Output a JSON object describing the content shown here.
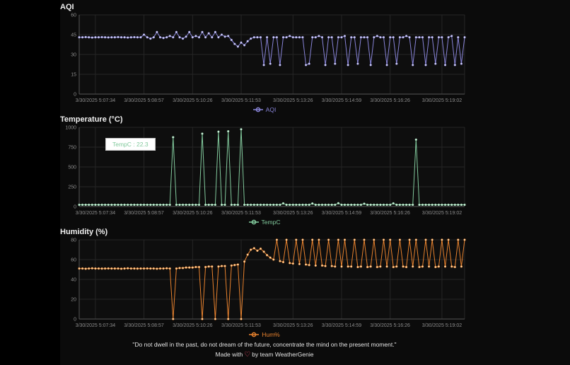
{
  "chart_data": [
    {
      "type": "line",
      "title": "AQI",
      "legend": "AQI",
      "color": "#8884d8",
      "dot_fill": "#d8d8f6",
      "y_max": 60,
      "y_ticks": [
        0,
        15,
        30,
        45,
        60
      ],
      "x_tick_indices": [
        5,
        20,
        35,
        50,
        66,
        81,
        96,
        112
      ],
      "x_tick_labels": [
        "3/30/2025 5:07:34",
        "3/30/2025 5:08:57",
        "3/30/2025 5:10:26",
        "3/30/2025 5:11:53",
        "3/30/2025 5:13:26",
        "3/30/2025 5:14:59",
        "3/30/2025 5:16:26",
        "3/30/2025 5:19:02"
      ],
      "values": [
        43,
        43,
        43.2,
        43,
        42.8,
        43,
        43,
        43.1,
        43,
        42.9,
        43,
        43,
        43.2,
        43,
        43,
        42.8,
        43,
        43.1,
        43,
        43,
        45,
        43,
        42,
        43,
        47,
        43,
        42.5,
        43,
        44,
        43,
        47,
        43,
        42,
        43.5,
        47,
        43,
        44,
        43,
        47,
        43,
        46,
        43,
        47,
        43,
        45,
        43.5,
        44,
        41,
        38,
        36,
        39,
        37,
        40,
        42,
        43,
        43,
        43,
        22,
        43,
        23,
        43,
        43,
        22,
        43,
        43,
        44,
        43,
        43,
        43,
        43,
        22,
        23,
        43,
        43,
        44,
        43,
        22,
        43,
        43,
        23,
        43,
        43,
        44,
        22,
        43,
        43,
        23,
        43,
        43,
        43,
        22,
        43,
        44,
        43,
        43,
        22,
        43,
        43,
        23,
        43,
        43,
        44,
        43,
        22,
        43,
        43,
        43,
        22,
        43,
        43,
        23,
        43,
        43,
        22,
        43,
        44,
        22,
        43,
        23,
        43
      ]
    },
    {
      "type": "line",
      "title": "Temperature (°C)",
      "legend": "TempC",
      "color": "#82ca9d",
      "dot_fill": "#d7f0e0",
      "y_max": 1000,
      "y_ticks": [
        0,
        250,
        500,
        750,
        1000
      ],
      "x_tick_indices": [
        5,
        20,
        35,
        50,
        66,
        81,
        96,
        112
      ],
      "x_tick_labels": [
        "3/30/2025 5:07:34",
        "3/30/2025 5:08:57",
        "3/30/2025 5:10:26",
        "3/30/2025 5:11:53",
        "3/30/2025 5:13:26",
        "3/30/2025 5:14:59",
        "3/30/2025 5:16:26",
        "3/30/2025 5:19:02"
      ],
      "values": [
        22.3,
        22.1,
        22.4,
        22.3,
        22.2,
        22.3,
        22.5,
        22.3,
        22.2,
        22.4,
        22.3,
        22.3,
        22.1,
        22.4,
        22.3,
        22.2,
        22.3,
        22.3,
        22.5,
        22.3,
        22.2,
        22.4,
        22.3,
        22.3,
        22.1,
        22.3,
        22.4,
        22.2,
        22.3,
        875,
        22.3,
        22.4,
        22.2,
        22.3,
        22.5,
        22.3,
        22.2,
        22.4,
        920,
        22.3,
        22.2,
        22.4,
        22.3,
        945,
        22.3,
        22.4,
        950,
        22.2,
        22.3,
        22.4,
        975,
        22.3,
        22.4,
        22.2,
        22.3,
        22.3,
        22.5,
        22.3,
        22.2,
        22.4,
        22.3,
        22.3,
        22.2,
        40,
        22.3,
        22.4,
        22.3,
        22.2,
        22.3,
        22.5,
        22.3,
        22.4,
        38,
        22.3,
        22.2,
        22.4,
        22.3,
        22.3,
        22.2,
        22.4,
        42,
        22.3,
        22.4,
        22.2,
        22.3,
        22.5,
        22.3,
        22.2,
        36,
        22.3,
        22.4,
        22.3,
        22.2,
        22.3,
        22.4,
        22.3,
        22.2,
        40,
        22.3,
        22.2,
        22.4,
        22.3,
        22.3,
        22.4,
        845,
        22.3,
        22.2,
        22.4,
        22.3,
        22.3,
        22.5,
        22.3,
        22.2,
        22.4,
        22.3,
        22.3,
        22.2,
        22.4,
        22.3,
        22.3
      ]
    },
    {
      "type": "line",
      "title": "Humidity (%)",
      "legend": "Hum%",
      "color": "#e8822e",
      "dot_fill": "#ffd9a8",
      "y_max": 80,
      "y_ticks": [
        0,
        20,
        40,
        60,
        80
      ],
      "x_tick_indices": [
        5,
        20,
        35,
        50,
        66,
        81,
        96,
        112
      ],
      "x_tick_labels": [
        "3/30/2025 5:07:34",
        "3/30/2025 5:08:57",
        "3/30/2025 5:10:26",
        "3/30/2025 5:11:53",
        "3/30/2025 5:13:26",
        "3/30/2025 5:14:59",
        "3/30/2025 5:16:26",
        "3/30/2025 5:19:02"
      ],
      "values": [
        51,
        51,
        50.8,
        51,
        51.2,
        51,
        51,
        50.9,
        51,
        51.1,
        51,
        51,
        51,
        50.8,
        51,
        51.2,
        51,
        51,
        50.9,
        51,
        51,
        51.1,
        51,
        51,
        50.8,
        51,
        51,
        51.2,
        51,
        0,
        51,
        51.5,
        51.5,
        52,
        52,
        52,
        52.5,
        52.5,
        0,
        52.5,
        53,
        53,
        0,
        53,
        53.5,
        53.5,
        0,
        54,
        54.5,
        55,
        0,
        58,
        65,
        70,
        71.5,
        69,
        71,
        68,
        64.5,
        62,
        60,
        80,
        58.5,
        57.5,
        80,
        56.5,
        56,
        80,
        55.5,
        80,
        55,
        54.5,
        80,
        54,
        80,
        54,
        53.5,
        80,
        53.5,
        53,
        80,
        53,
        80,
        53,
        53,
        80,
        52.5,
        53,
        80,
        52.5,
        53,
        80,
        52.5,
        53,
        80,
        53,
        80,
        52.5,
        53,
        80,
        53,
        52.5,
        80,
        53,
        80,
        52.5,
        53,
        80,
        53,
        80,
        52.5,
        53,
        80,
        53,
        80,
        53,
        52.5,
        80,
        53,
        80
      ]
    }
  ],
  "tooltip": {
    "text": "TempC : 22.3"
  },
  "footer": {
    "quote": "\"Do not dwell in the past, do not dream of the future, concentrate the mind on the present moment.\"",
    "credit_prefix": "Made with",
    "heart": "♡",
    "credit_suffix": "by team WeatherGenie"
  }
}
